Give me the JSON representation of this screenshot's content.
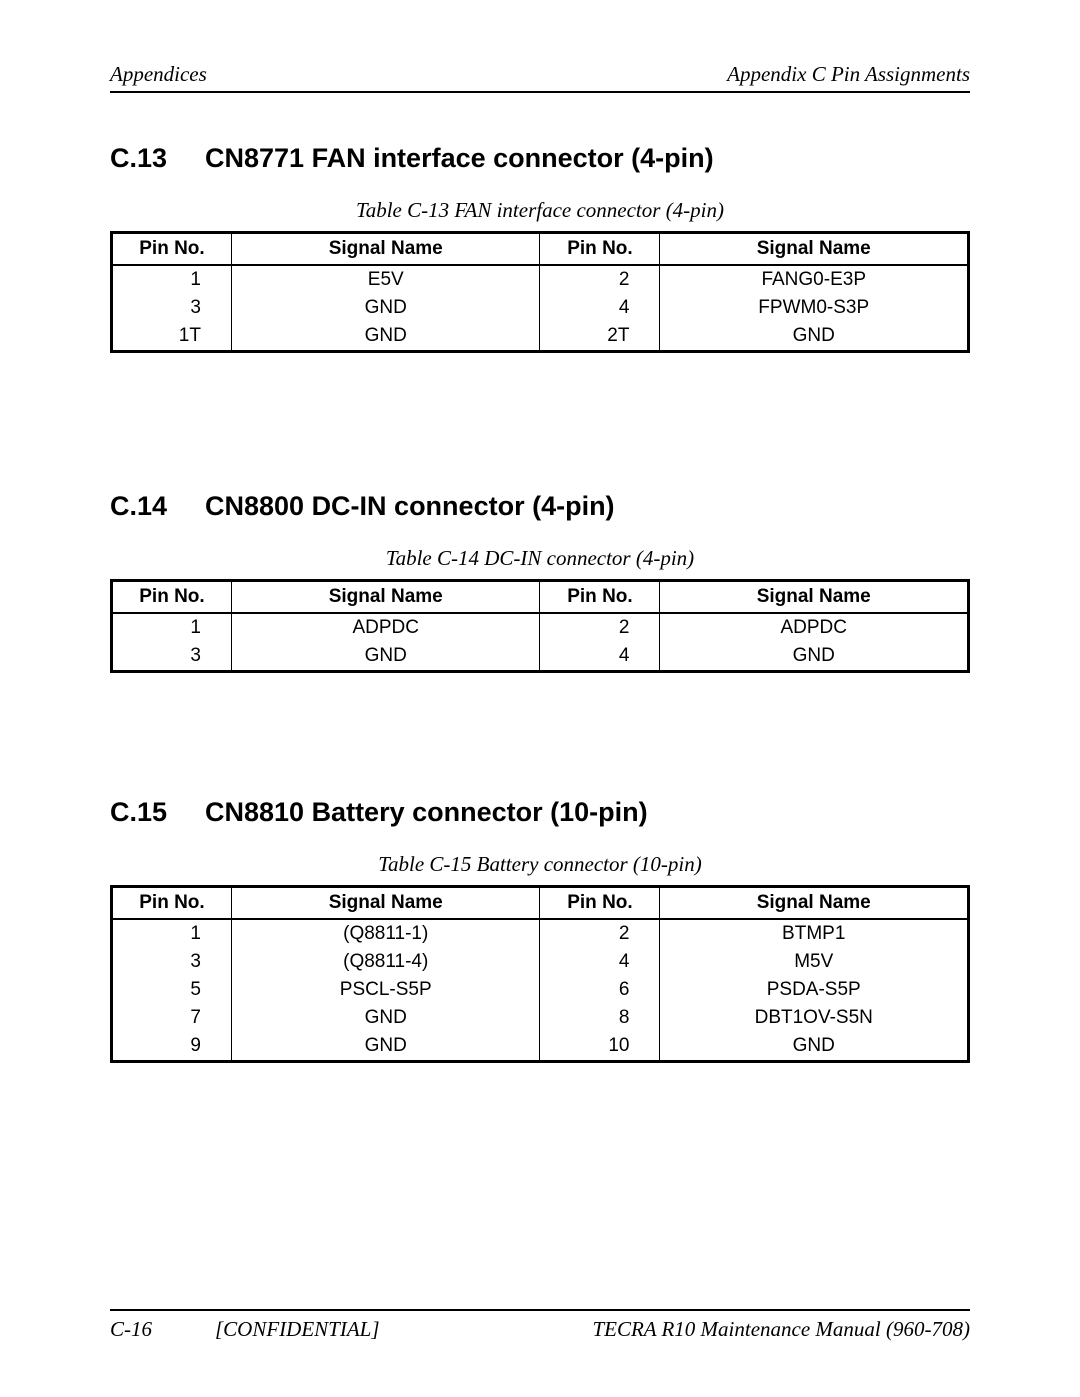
{
  "header": {
    "left": "Appendices",
    "right": "Appendix C  Pin Assignments"
  },
  "columns": {
    "pin": "Pin No.",
    "signal": "Signal Name"
  },
  "sections": [
    {
      "num": "C.13",
      "title": "CN8771  FAN interface connector (4-pin)",
      "caption": "Table C-13 FAN interface connector (4-pin)",
      "rows": [
        [
          "1",
          "E5V",
          "2",
          "FANG0-E3P"
        ],
        [
          "3",
          "GND",
          "4",
          "FPWM0-S3P"
        ],
        [
          "1T",
          "GND",
          "2T",
          "GND"
        ]
      ]
    },
    {
      "num": "C.14",
      "title": "CN8800  DC-IN connector (4-pin)",
      "caption": "Table C-14 DC-IN connector (4-pin)",
      "rows": [
        [
          "1",
          "ADPDC",
          "2",
          "ADPDC"
        ],
        [
          "3",
          "GND",
          "4",
          "GND"
        ]
      ]
    },
    {
      "num": "C.15",
      "title": "CN8810  Battery connector (10-pin)",
      "caption": "Table C-15 Battery connector (10-pin)",
      "rows": [
        [
          "1",
          "(Q8811-1)",
          "2",
          "BTMP1"
        ],
        [
          "3",
          "(Q8811-4)",
          "4",
          "M5V"
        ],
        [
          "5",
          "PSCL-S5P",
          "6",
          "PSDA-S5P"
        ],
        [
          "7",
          "GND",
          "8",
          "DBT1OV-S5N"
        ],
        [
          "9",
          "GND",
          "10",
          "GND"
        ]
      ]
    }
  ],
  "spacing": {
    "after_section_0": 88,
    "after_section_1": 74,
    "after_section_2": 0
  },
  "footer": {
    "page": "C-16",
    "confidential": "[CONFIDENTIAL]",
    "manual": "TECRA R10  Maintenance Manual (960-708)"
  }
}
